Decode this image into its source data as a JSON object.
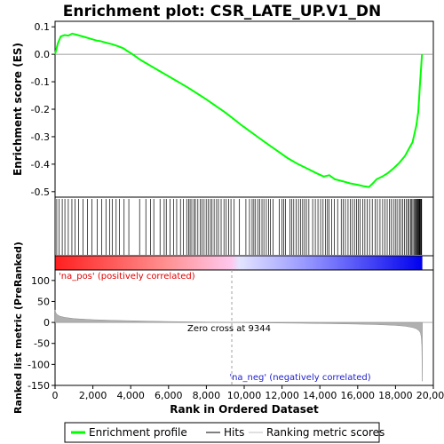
{
  "chart_data": [
    {
      "panel": "enrichment",
      "type": "line",
      "title": "Enrichment plot: CSR_LATE_UP.V1_DN",
      "ylabel": "Enrichment score (ES)",
      "xlim": [
        0,
        20000
      ],
      "ylim": [
        -0.52,
        0.12
      ],
      "yticks": [
        0.1,
        0.0,
        -0.1,
        -0.2,
        -0.3,
        -0.4,
        -0.5
      ],
      "ytick_labels": [
        "0.1",
        "0.0",
        "-0.1",
        "-0.2",
        "-0.3",
        "-0.4",
        "-0.5"
      ],
      "grid": false,
      "line_color": "#00ff00",
      "series": [
        {
          "name": "Enrichment profile",
          "x": [
            0,
            150,
            300,
            500,
            700,
            900,
            1100,
            1300,
            1600,
            1900,
            2200,
            2400,
            2700,
            3000,
            3300,
            3600,
            3800,
            4100,
            4500,
            5000,
            5500,
            6000,
            6500,
            7000,
            7500,
            8000,
            8500,
            9000,
            9344,
            9800,
            10300,
            10800,
            11300,
            11800,
            12300,
            12800,
            13300,
            13800,
            14200,
            14500,
            14800,
            15200,
            15600,
            16000,
            16300,
            16600,
            16800,
            17000,
            17300,
            17600,
            17900,
            18200,
            18500,
            18700,
            18900,
            19000,
            19100,
            19200,
            19250,
            19300,
            19350,
            19400
          ],
          "y": [
            0.0,
            0.04,
            0.065,
            0.07,
            0.068,
            0.075,
            0.072,
            0.068,
            0.062,
            0.056,
            0.05,
            0.048,
            0.042,
            0.037,
            0.03,
            0.022,
            0.013,
            0.0,
            -0.02,
            -0.04,
            -0.06,
            -0.08,
            -0.1,
            -0.12,
            -0.142,
            -0.164,
            -0.188,
            -0.212,
            -0.23,
            -0.255,
            -0.28,
            -0.305,
            -0.33,
            -0.354,
            -0.378,
            -0.398,
            -0.415,
            -0.432,
            -0.445,
            -0.44,
            -0.455,
            -0.462,
            -0.47,
            -0.475,
            -0.48,
            -0.483,
            -0.47,
            -0.455,
            -0.445,
            -0.432,
            -0.415,
            -0.395,
            -0.37,
            -0.345,
            -0.32,
            -0.29,
            -0.26,
            -0.21,
            -0.16,
            -0.1,
            -0.05,
            0.0
          ]
        }
      ]
    },
    {
      "panel": "hits",
      "type": "scatter",
      "marker": "vertical-line",
      "hit_ranks": [
        90,
        220,
        380,
        520,
        700,
        890,
        1050,
        1240,
        1480,
        1720,
        1950,
        2230,
        2460,
        2690,
        2880,
        3020,
        3230,
        3410,
        3650,
        3900,
        4470,
        4800,
        5050,
        5220,
        5550,
        5770,
        5880,
        6080,
        6260,
        6430,
        6630,
        6790,
        6960,
        7070,
        7140,
        7230,
        7340,
        7420,
        7550,
        7670,
        7770,
        7880,
        7990,
        8090,
        8210,
        8300,
        8410,
        8540,
        8640,
        8780,
        8930,
        9050,
        9180,
        9300,
        9470,
        9750,
        10090,
        10280,
        10420,
        10510,
        10600,
        10720,
        10820,
        10940,
        11040,
        11170,
        11290,
        11390,
        11520,
        11860,
        12000,
        12090,
        12180,
        12410,
        12520,
        12620,
        12740,
        12870,
        12990,
        13090,
        13190,
        13290,
        13420,
        13620,
        13760,
        13900,
        14040,
        14170,
        14290,
        14400,
        14490,
        14620,
        14770,
        14940,
        15130,
        15240,
        15350,
        15490,
        15610,
        15720,
        15830,
        15940,
        16030,
        16130,
        16260,
        16380,
        16500,
        16630,
        16770,
        16920,
        17040,
        17180,
        17320,
        17440,
        17560,
        17670,
        17780,
        17890,
        17990,
        18080,
        18190,
        18290,
        18380,
        18470,
        18560,
        18650,
        18720,
        18800,
        18860,
        18920,
        18980,
        19030,
        19080,
        19120,
        19160,
        19200,
        19230,
        19260,
        19290,
        19320,
        19350,
        19380
      ]
    },
    {
      "panel": "rank-bar",
      "type": "heatmap",
      "gradient": [
        "#ff0000",
        "#ffffff",
        "#0000ff"
      ]
    },
    {
      "panel": "ranked-metric",
      "type": "area",
      "xlabel": "Rank in Ordered Dataset",
      "ylabel": "Ranked list metric (PreRanked)",
      "xlim": [
        0,
        20000
      ],
      "ylim": [
        -150,
        125
      ],
      "xticks": [
        0,
        2000,
        4000,
        6000,
        8000,
        10000,
        12000,
        14000,
        16000,
        18000,
        20000
      ],
      "xtick_labels": [
        "0",
        "2,000",
        "4,000",
        "6,000",
        "8,000",
        "10,000",
        "12,000",
        "14,000",
        "16,000",
        "18,000",
        "20,000"
      ],
      "yticks": [
        100,
        50,
        0,
        -50,
        -100,
        -150
      ],
      "ytick_labels": [
        "100",
        "50",
        "0",
        "-50",
        "-100",
        "-150"
      ],
      "fill_color": "#b0b0b0",
      "series": [
        {
          "name": "Ranking metric scores",
          "x": [
            0,
            30,
            100,
            250,
            500,
            1000,
            2000,
            3000,
            4000,
            5000,
            6000,
            7000,
            8000,
            9000,
            9344,
            10000,
            11000,
            12000,
            13000,
            14000,
            15000,
            16000,
            17000,
            18000,
            18500,
            18900,
            19100,
            19250,
            19320,
            19360,
            19390,
            19420
          ],
          "y": [
            30,
            24,
            19,
            15,
            12,
            9,
            6.5,
            5,
            4,
            3,
            2.2,
            1.5,
            0.8,
            0.2,
            0,
            -0.5,
            -1,
            -1.5,
            -2,
            -2.5,
            -3.2,
            -4,
            -5,
            -7,
            -9,
            -12,
            -15,
            -20,
            -25,
            -35,
            -55,
            -140
          ]
        }
      ],
      "annotations": [
        {
          "key": "pos",
          "text": "'na_pos' (positively correlated)"
        },
        {
          "key": "zero",
          "text": "Zero cross at 9344",
          "x": 9344
        },
        {
          "key": "neg",
          "text": "'na_neg' (negatively correlated)"
        }
      ]
    }
  ],
  "legend": {
    "items": [
      {
        "label": "Enrichment profile",
        "color": "#00ff00"
      },
      {
        "label": "Hits",
        "color": "#000000"
      },
      {
        "label": "Ranking metric scores",
        "color": "#c0c0c0"
      }
    ]
  }
}
